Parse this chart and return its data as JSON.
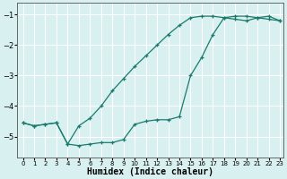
{
  "xlabel": "Humidex (Indice chaleur)",
  "background_color": "#d8f0f0",
  "grid_color": "#ffffff",
  "line_color": "#1a7a6e",
  "xlim": [
    -0.5,
    23.3
  ],
  "ylim": [
    -5.7,
    -0.6
  ],
  "yticks": [
    -5,
    -4,
    -3,
    -2,
    -1
  ],
  "xticks": [
    0,
    1,
    2,
    3,
    4,
    5,
    6,
    7,
    8,
    9,
    10,
    11,
    12,
    13,
    14,
    15,
    16,
    17,
    18,
    19,
    20,
    21,
    22,
    23
  ],
  "line1_x": [
    0,
    1,
    2,
    3,
    4,
    5,
    6,
    7,
    8,
    9,
    10,
    11,
    12,
    13,
    14,
    15,
    16,
    17,
    18,
    19,
    20,
    21,
    22,
    23
  ],
  "line1_y": [
    -4.55,
    -4.65,
    -4.6,
    -4.55,
    -5.25,
    -5.3,
    -5.25,
    -5.2,
    -5.2,
    -5.1,
    -4.6,
    -4.5,
    -4.45,
    -4.45,
    -4.35,
    -3.0,
    -2.4,
    -1.65,
    -1.1,
    -1.05,
    -1.05,
    -1.1,
    -1.15,
    -1.2
  ],
  "line2_x": [
    0,
    1,
    2,
    3,
    4,
    5,
    6,
    7,
    8,
    9,
    10,
    11,
    12,
    13,
    14,
    15,
    16,
    17,
    18,
    19,
    20,
    21,
    22,
    23
  ],
  "line2_y": [
    -4.55,
    -4.65,
    -4.6,
    -4.55,
    -5.25,
    -4.65,
    -4.4,
    -4.0,
    -3.5,
    -3.1,
    -2.7,
    -2.35,
    -2.0,
    -1.65,
    -1.35,
    -1.1,
    -1.05,
    -1.05,
    -1.1,
    -1.15,
    -1.2,
    -1.1,
    -1.05,
    -1.2
  ]
}
